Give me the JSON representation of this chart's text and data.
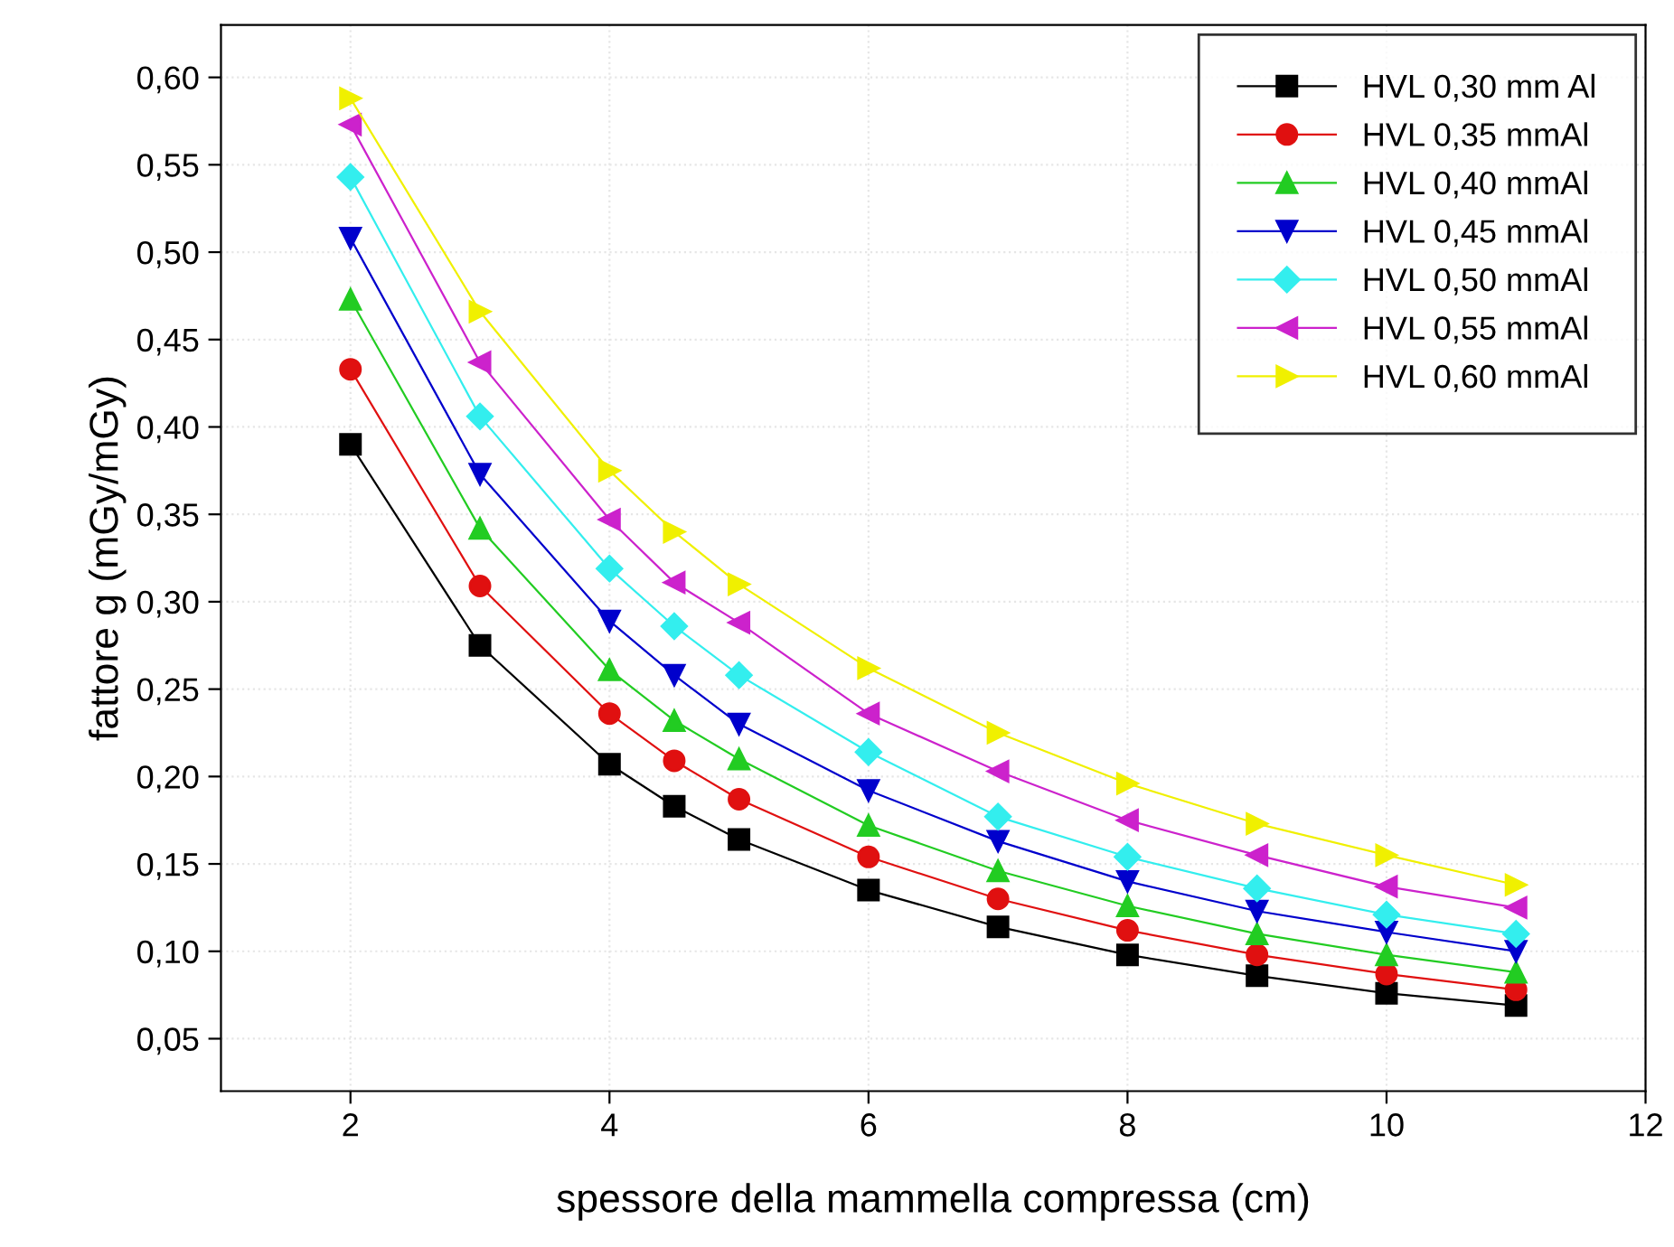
{
  "chart_data": {
    "type": "line",
    "xlabel": "spessore della mammella compressa (cm)",
    "ylabel": "fattore g (mGy/mGy)",
    "x": [
      2,
      3,
      4,
      4.5,
      5,
      6,
      7,
      8,
      9,
      10,
      11
    ],
    "xlim": [
      1,
      12
    ],
    "xticks": [
      2,
      4,
      6,
      8,
      10,
      12
    ],
    "ylim": [
      0.02,
      0.63
    ],
    "yticks": [
      {
        "value": 0.05,
        "label": "0,05"
      },
      {
        "value": 0.1,
        "label": "0,10"
      },
      {
        "value": 0.15,
        "label": "0,15"
      },
      {
        "value": 0.2,
        "label": "0,20"
      },
      {
        "value": 0.25,
        "label": "0,25"
      },
      {
        "value": 0.3,
        "label": "0,30"
      },
      {
        "value": 0.35,
        "label": "0,35"
      },
      {
        "value": 0.4,
        "label": "0,40"
      },
      {
        "value": 0.45,
        "label": "0,45"
      },
      {
        "value": 0.5,
        "label": "0,50"
      },
      {
        "value": 0.55,
        "label": "0,55"
      },
      {
        "value": 0.6,
        "label": "0,60"
      }
    ],
    "grid": true,
    "legend": "top right",
    "line_style": "solid",
    "series": [
      {
        "name": "HVL 0,30 mm Al",
        "color": "#000000",
        "marker": "square",
        "values": [
          0.39,
          0.275,
          0.207,
          0.183,
          0.164,
          0.135,
          0.114,
          0.098,
          0.086,
          0.076,
          0.069
        ]
      },
      {
        "name": "HVL 0,35 mmAl",
        "color": "#e01010",
        "marker": "circle",
        "values": [
          0.433,
          0.309,
          0.236,
          0.209,
          0.187,
          0.154,
          0.13,
          0.112,
          0.098,
          0.087,
          0.078
        ]
      },
      {
        "name": "HVL 0,40 mmAl",
        "color": "#22cc22",
        "marker": "triangle",
        "values": [
          0.473,
          0.342,
          0.261,
          0.232,
          0.21,
          0.172,
          0.146,
          0.126,
          0.11,
          0.098,
          0.088
        ]
      },
      {
        "name": "HVL 0,45 mmAl",
        "color": "#0000cc",
        "marker": "triangle-down",
        "values": [
          0.508,
          0.373,
          0.289,
          0.258,
          0.23,
          0.192,
          0.163,
          0.14,
          0.123,
          0.111,
          0.1
        ]
      },
      {
        "name": "HVL 0,50 mmAl",
        "color": "#33eeee",
        "marker": "diamond",
        "values": [
          0.543,
          0.406,
          0.319,
          0.286,
          0.258,
          0.214,
          0.177,
          0.154,
          0.136,
          0.121,
          0.11
        ]
      },
      {
        "name": "HVL 0,55 mmAl",
        "color": "#cc22cc",
        "marker": "triangle-left",
        "values": [
          0.573,
          0.437,
          0.347,
          0.311,
          0.288,
          0.236,
          0.203,
          0.175,
          0.155,
          0.137,
          0.125
        ]
      },
      {
        "name": "HVL 0,60 mmAl",
        "color": "#f0f000",
        "marker": "triangle-right",
        "values": [
          0.588,
          0.466,
          0.375,
          0.34,
          0.31,
          0.262,
          0.225,
          0.196,
          0.173,
          0.155,
          0.138
        ]
      }
    ]
  }
}
